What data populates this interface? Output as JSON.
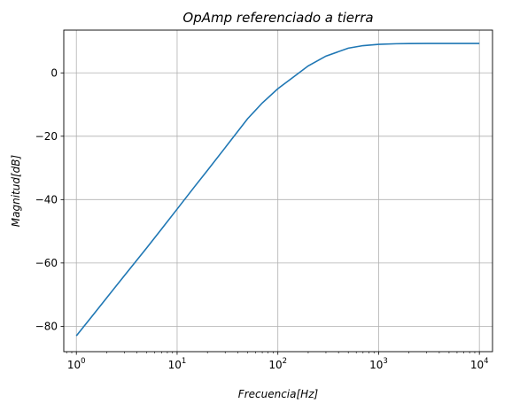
{
  "chart_data": {
    "type": "line",
    "title": "OpAmp referenciado  a tierra",
    "xlabel": "Frecuencia[Hz]",
    "ylabel": "Magnitud[dB]",
    "xscale": "log",
    "xlim": [
      0.75,
      13500
    ],
    "ylim": [
      -88,
      13.5
    ],
    "grid": true,
    "legend": "none",
    "line_color": "#1f77b4",
    "x_ticks": [
      {
        "value": 1,
        "base": "10",
        "exp": "0"
      },
      {
        "value": 10,
        "base": "10",
        "exp": "1"
      },
      {
        "value": 100,
        "base": "10",
        "exp": "2"
      },
      {
        "value": 1000,
        "base": "10",
        "exp": "3"
      },
      {
        "value": 10000,
        "base": "10",
        "exp": "4"
      }
    ],
    "y_ticks": [
      {
        "value": 0,
        "label": "0"
      },
      {
        "value": -20,
        "label": "−20"
      },
      {
        "value": -40,
        "label": "−40"
      },
      {
        "value": -60,
        "label": "−60"
      },
      {
        "value": -80,
        "label": "−80"
      }
    ],
    "series": [
      {
        "x": [
          1,
          1.5,
          2,
          3,
          5,
          7,
          10,
          15,
          20,
          30,
          50,
          70,
          100,
          150,
          200,
          300,
          500,
          700,
          1000,
          1500,
          2000,
          3000,
          5000,
          7000,
          10000
        ],
        "y": [
          -83.0,
          -76.0,
          -71.0,
          -64.0,
          -55.2,
          -49.3,
          -43.0,
          -35.8,
          -30.8,
          -23.6,
          -14.5,
          -9.5,
          -5.0,
          -0.8,
          2.2,
          5.3,
          7.8,
          8.6,
          9.0,
          9.2,
          9.25,
          9.3,
          9.3,
          9.3,
          9.3
        ]
      }
    ]
  }
}
